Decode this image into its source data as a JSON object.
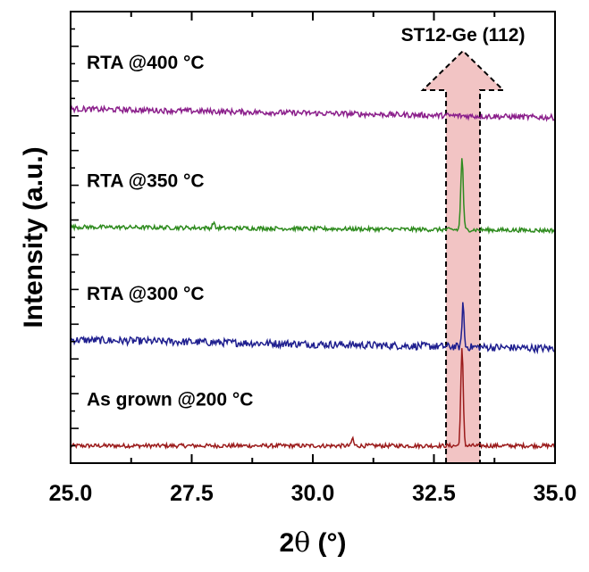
{
  "chart_data": {
    "type": "line",
    "xlabel_prefix": "2",
    "xlabel_symbol": "θ",
    "xlabel_suffix": " (°)",
    "ylabel": "Intensity (a.u.)",
    "xlim": [
      25.0,
      35.0
    ],
    "x_ticks": [
      "25.0",
      "27.5",
      "30.0",
      "32.5",
      "35.0"
    ],
    "x_tick_values": [
      25.0,
      27.5,
      30.0,
      32.5,
      35.0
    ],
    "grid": false,
    "y_tick_labels_shown": false,
    "annotation": {
      "label": "ST12-Ge (112)",
      "x_range": [
        32.75,
        33.45
      ],
      "fill": "#f2c4c4",
      "style": "dashed-arrow-up"
    },
    "series": [
      {
        "name": "As grown @200 °C",
        "color": "#9b1b1b",
        "baseline": 1.0,
        "noise": 0.12,
        "slope": 0.0,
        "peaks": [
          {
            "x": 33.08,
            "height": 5.6,
            "width": 0.025
          },
          {
            "x": 30.82,
            "height": 0.45,
            "width": 0.02
          }
        ]
      },
      {
        "name": "RTA @300 °C",
        "color": "#1f1f8f",
        "baseline": 7.1,
        "noise": 0.22,
        "slope": -0.05,
        "peaks": [
          {
            "x": 33.1,
            "height": 2.6,
            "width": 0.02
          }
        ]
      },
      {
        "name": "RTA @350 °C",
        "color": "#2e8b1e",
        "baseline": 13.6,
        "noise": 0.12,
        "slope": -0.02,
        "peaks": [
          {
            "x": 33.08,
            "height": 4.2,
            "width": 0.025
          },
          {
            "x": 27.95,
            "height": 0.35,
            "width": 0.02
          }
        ]
      },
      {
        "name": "RTA @400 °C",
        "color": "#8b1f8b",
        "baseline": 20.4,
        "noise": 0.16,
        "slope": -0.05,
        "peaks": []
      }
    ]
  }
}
